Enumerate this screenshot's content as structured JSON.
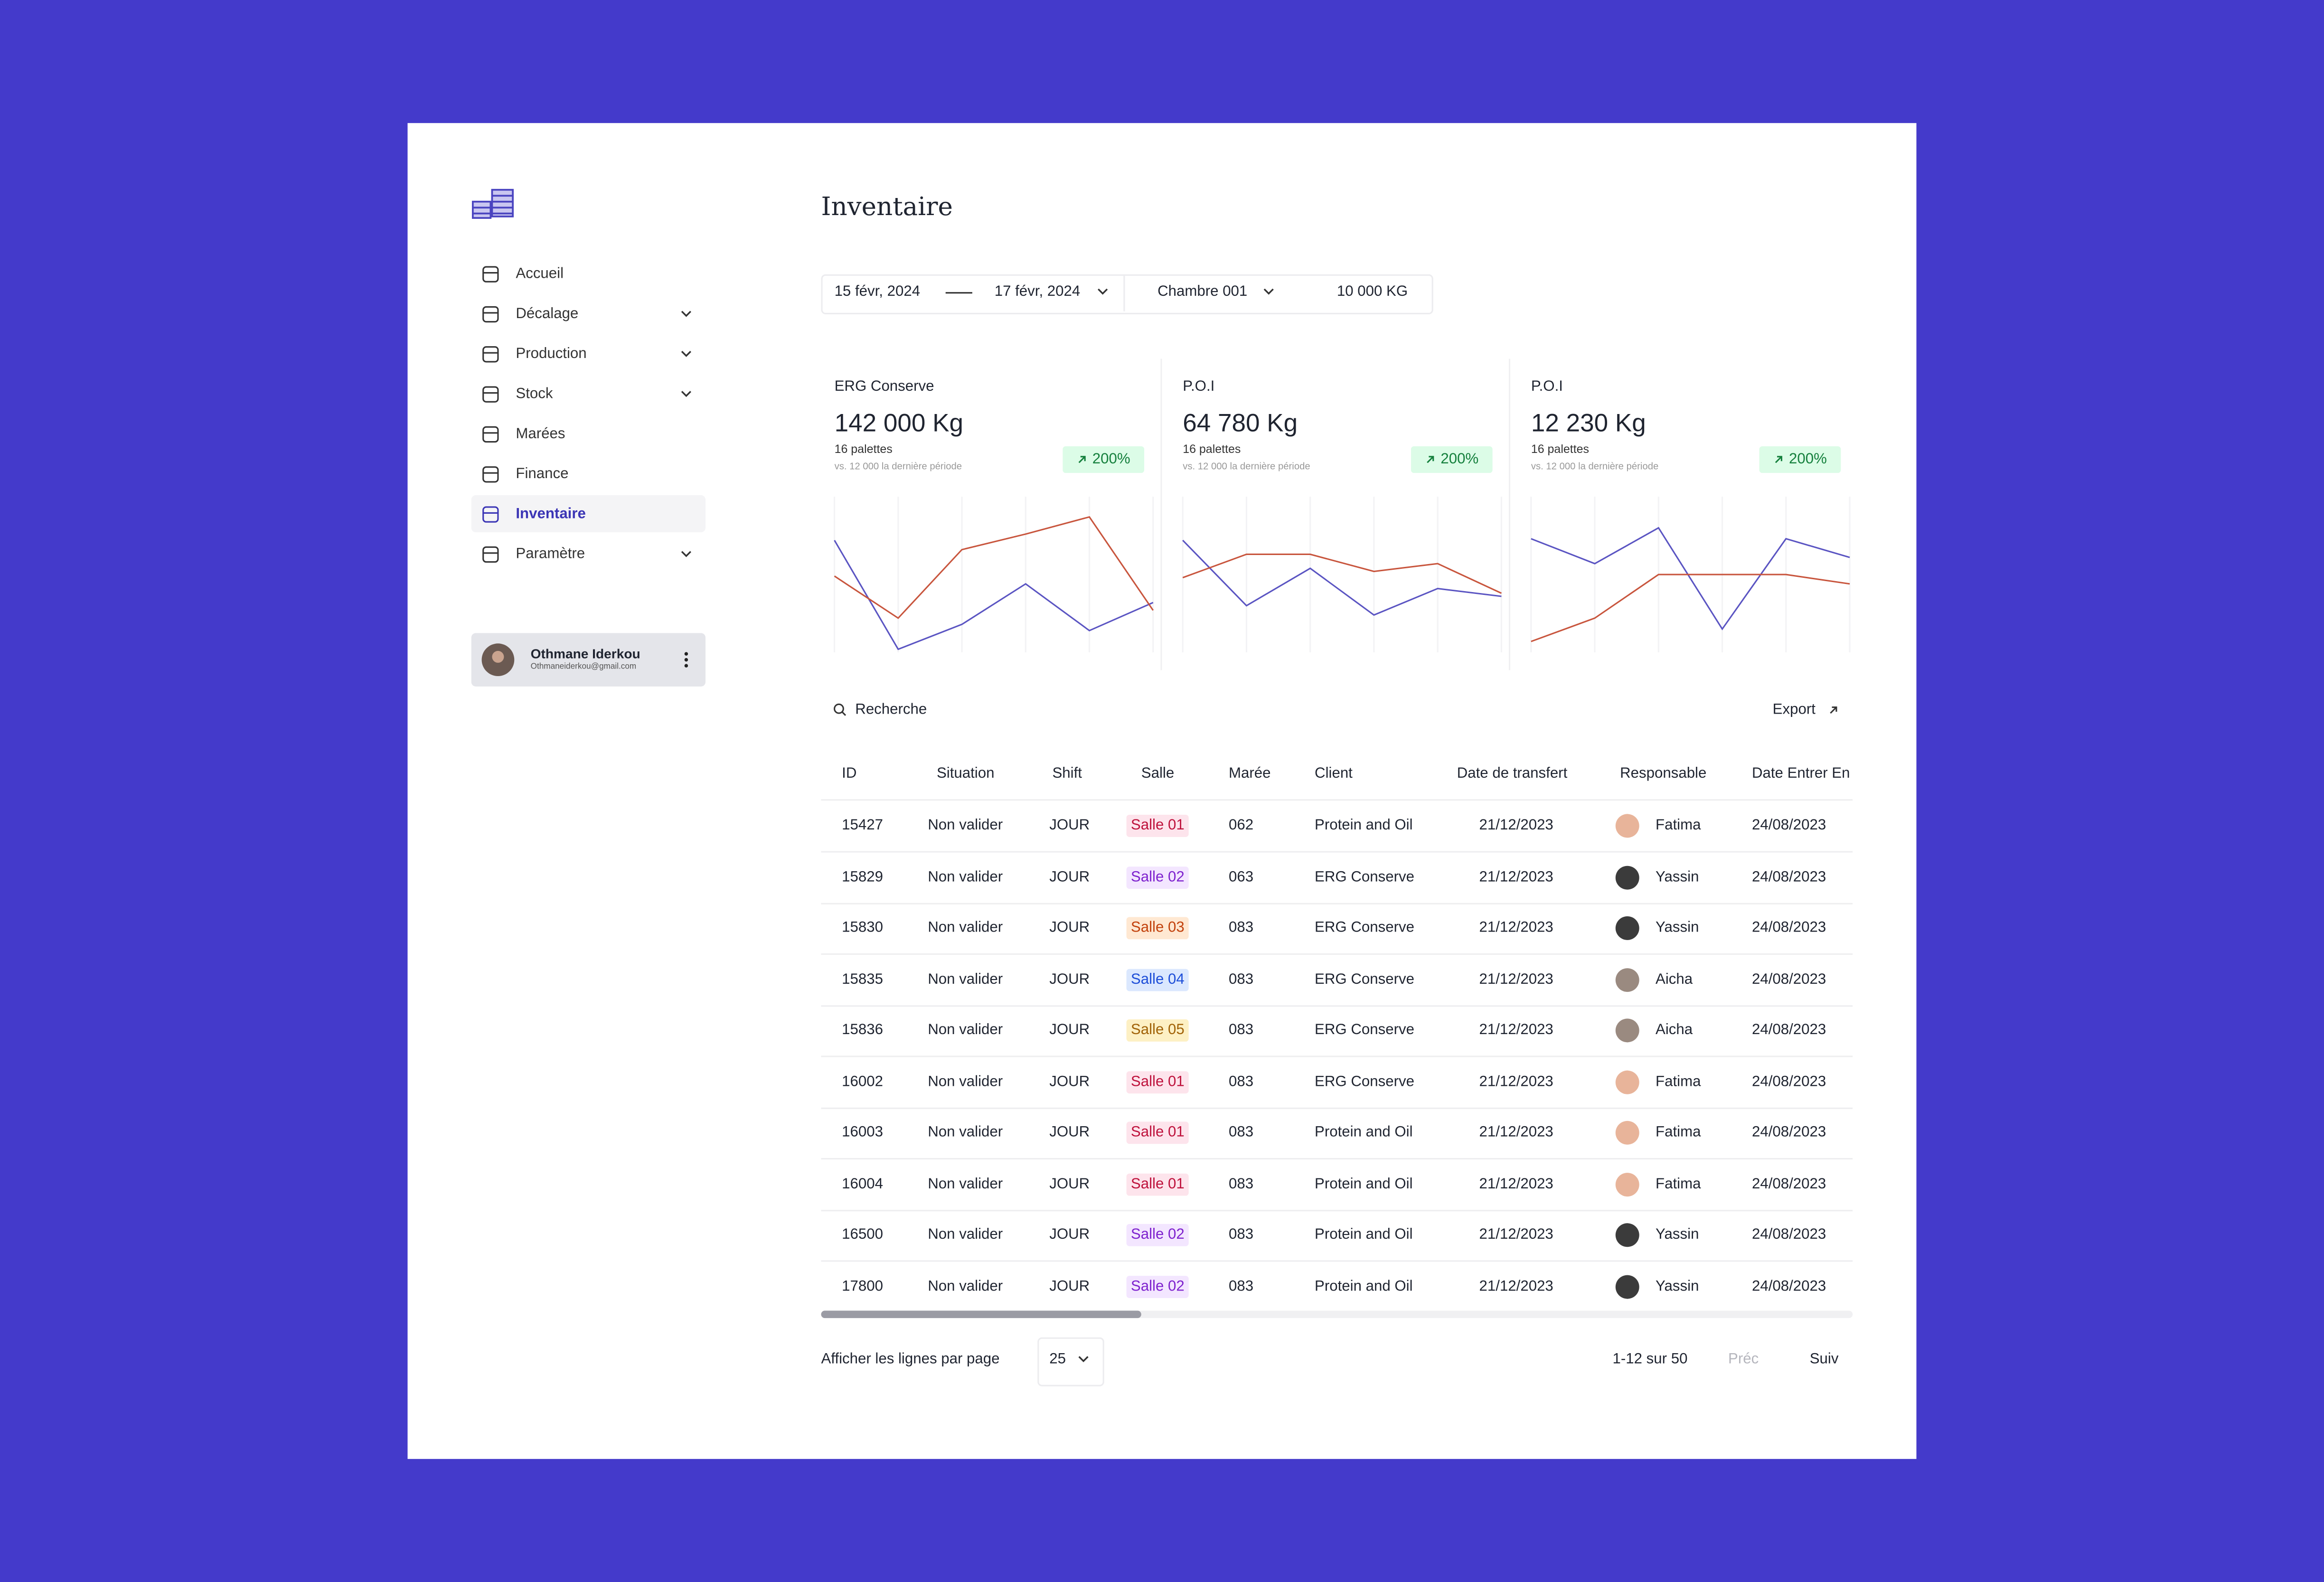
{
  "sidebar": {
    "nav": [
      {
        "label": "Accueil",
        "chevron": false
      },
      {
        "label": "Décalage",
        "chevron": true
      },
      {
        "label": "Production",
        "chevron": true
      },
      {
        "label": "Stock",
        "chevron": true
      },
      {
        "label": "Marées",
        "chevron": false
      },
      {
        "label": "Finance",
        "chevron": false
      },
      {
        "label": "Inventaire",
        "chevron": false
      },
      {
        "label": "Paramètre",
        "chevron": true
      }
    ],
    "active_index": 6,
    "user": {
      "name": "Othmane Iderkou",
      "email": "Othmaneiderkou@gmail.com"
    }
  },
  "main": {
    "title": "Inventaire",
    "filters": {
      "start": "15 févr, 2024",
      "end": "17 févr, 2024",
      "room": "Chambre 001",
      "weight": "10 000 KG"
    },
    "cards": [
      {
        "title": "ERG Conserve",
        "value": "142 000 Kg",
        "palettes": "16 palettes",
        "comparison": "vs. 12 000 la dernière période",
        "change": "200%",
        "chart": {
          "ylim": [
            0,
            100
          ],
          "series": [
            {
              "color": "#5a54c2",
              "values": [
                72,
                2,
                18,
                44,
                14,
                32
              ]
            },
            {
              "color": "#c8553d",
              "values": [
                49,
                22,
                66,
                76,
                87,
                27
              ]
            }
          ]
        }
      },
      {
        "title": "P.O.I",
        "value": "64 780 Kg",
        "palettes": "16 palettes",
        "comparison": "vs. 12 000 la dernière période",
        "change": "200%",
        "chart": {
          "ylim": [
            0,
            100
          ],
          "series": [
            {
              "color": "#5a54c2",
              "values": [
                72,
                30,
                54,
                24,
                41,
                36
              ]
            },
            {
              "color": "#c8553d",
              "values": [
                48,
                63,
                63,
                52,
                57,
                38
              ]
            }
          ]
        }
      },
      {
        "title": "P.O.I",
        "value": "12 230 Kg",
        "palettes": "16 palettes",
        "comparison": "vs. 12 000 la dernière période",
        "change": "200%",
        "chart": {
          "ylim": [
            0,
            100
          ],
          "series": [
            {
              "color": "#5a54c2",
              "values": [
                73,
                57,
                80,
                15,
                73,
                61
              ]
            },
            {
              "color": "#c8553d",
              "values": [
                7,
                22,
                50,
                50,
                50,
                44
              ]
            }
          ]
        }
      }
    ],
    "search": "Recherche",
    "export": "Export",
    "table": {
      "columns": [
        "ID",
        "Situation",
        "Shift",
        "Salle",
        "Marée",
        "Client",
        "Date de transfert",
        "Responsable",
        "Date Entrer En"
      ],
      "rows": [
        [
          "15427",
          "Non valider",
          "JOUR",
          "Salle 01",
          "062",
          "Protein and Oil",
          "21/12/2023",
          "Fatima",
          "24/08/2023"
        ],
        [
          "15829",
          "Non valider",
          "JOUR",
          "Salle 02",
          "063",
          "ERG Conserve",
          "21/12/2023",
          "Yassin",
          "24/08/2023"
        ],
        [
          "15830",
          "Non valider",
          "JOUR",
          "Salle 03",
          "083",
          "ERG Conserve",
          "21/12/2023",
          "Yassin",
          "24/08/2023"
        ],
        [
          "15835",
          "Non valider",
          "JOUR",
          "Salle 04",
          "083",
          "ERG Conserve",
          "21/12/2023",
          "Aicha",
          "24/08/2023"
        ],
        [
          "15836",
          "Non valider",
          "JOUR",
          "Salle 05",
          "083",
          "ERG Conserve",
          "21/12/2023",
          "Aicha",
          "24/08/2023"
        ],
        [
          "16002",
          "Non valider",
          "JOUR",
          "Salle 01",
          "083",
          "ERG Conserve",
          "21/12/2023",
          "Fatima",
          "24/08/2023"
        ],
        [
          "16003",
          "Non valider",
          "JOUR",
          "Salle 01",
          "083",
          "Protein and Oil",
          "21/12/2023",
          "Fatima",
          "24/08/2023"
        ],
        [
          "16004",
          "Non valider",
          "JOUR",
          "Salle 01",
          "083",
          "Protein and Oil",
          "21/12/2023",
          "Fatima",
          "24/08/2023"
        ],
        [
          "16500",
          "Non valider",
          "JOUR",
          "Salle 02",
          "083",
          "Protein and Oil",
          "21/12/2023",
          "Yassin",
          "24/08/2023"
        ],
        [
          "17800",
          "Non valider",
          "JOUR",
          "Salle 02",
          "083",
          "Protein and Oil",
          "21/12/2023",
          "Yassin",
          "24/08/2023"
        ]
      ],
      "badge_styles": {
        "Salle 01": {
          "bg": "#fde4ec",
          "fg": "#be123c"
        },
        "Salle 02": {
          "bg": "#f3e6ff",
          "fg": "#7e22ce"
        },
        "Salle 03": {
          "bg": "#ffe8d2",
          "fg": "#c2410c"
        },
        "Salle 04": {
          "bg": "#dbe8fe",
          "fg": "#1d4ed8"
        },
        "Salle 05": {
          "bg": "#fdf0c4",
          "fg": "#a16207"
        }
      },
      "avatar_colors": {
        "Fatima": "#e8b49a",
        "Yassin": "#3b3b3b",
        "Aicha": "#9a8a80"
      }
    },
    "footer": {
      "rows_label": "Afficher les lignes par page",
      "page_size": "25",
      "range": "1-12 sur 50",
      "prev": "Préc",
      "next": "Suiv"
    }
  }
}
